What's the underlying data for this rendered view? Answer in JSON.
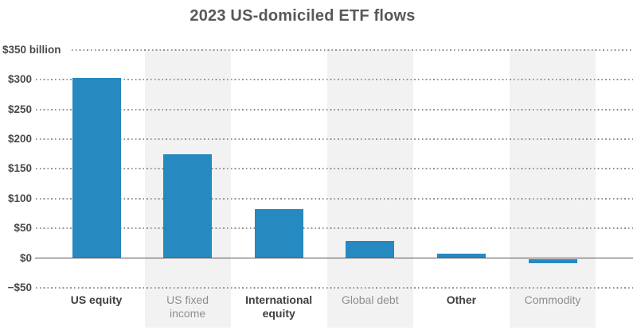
{
  "chart_data": {
    "type": "bar",
    "title": "2023 US-domiciled ETF flows",
    "unit": "US$ billions",
    "categories": [
      "US equity",
      "US fixed income",
      "International equity",
      "Global debt",
      "Other",
      "Commodity"
    ],
    "category_lines": [
      [
        "US equity"
      ],
      [
        "US fixed",
        "income"
      ],
      [
        "International",
        "equity"
      ],
      [
        "Global debt"
      ],
      [
        "Other"
      ],
      [
        "Commodity"
      ]
    ],
    "category_emphasis": [
      true,
      false,
      true,
      false,
      true,
      false
    ],
    "values": [
      303,
      175,
      82,
      29,
      8,
      -8
    ],
    "y_ticks": [
      {
        "value": 350,
        "label": "$350 billion"
      },
      {
        "value": 300,
        "label": "$300"
      },
      {
        "value": 250,
        "label": "$250"
      },
      {
        "value": 200,
        "label": "$200"
      },
      {
        "value": 150,
        "label": "$150"
      },
      {
        "value": 100,
        "label": "$100"
      },
      {
        "value": 50,
        "label": "$50"
      },
      {
        "value": 0,
        "label": "$0"
      },
      {
        "value": -50,
        "label": "−$50"
      }
    ],
    "ylim": [
      -50,
      350
    ],
    "xlabel": "",
    "ylabel": "",
    "legend": "none",
    "grid": "horizontal-dotted",
    "shaded_columns": [
      1,
      3,
      5
    ],
    "colors": {
      "bar": "#2689c0",
      "column_band": "#f2f2f2",
      "gridline": "#949494",
      "zero_line": "#55565b",
      "title_text": "#58585a",
      "tick_text": "#4a4a4c",
      "label_bold_text": "#3f3f3f",
      "label_regular_text": "#8f8f8f",
      "background": "#ffffff"
    }
  }
}
